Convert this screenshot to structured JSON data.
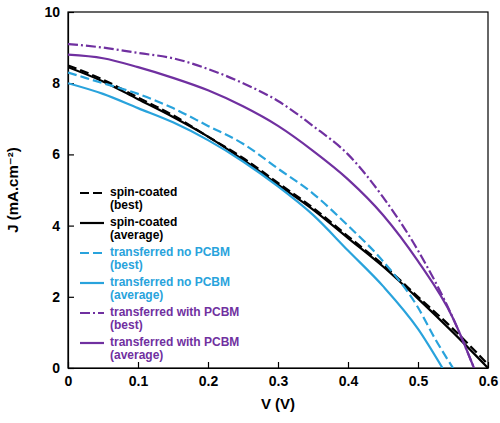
{
  "chart_data": {
    "type": "line",
    "x_label": "V (V)",
    "y_label": "J (mA.cm⁻²)",
    "xlim": [
      0,
      0.6
    ],
    "ylim": [
      0,
      10
    ],
    "xticks": [
      0,
      0.1,
      0.2,
      0.3,
      0.4,
      0.5,
      0.6
    ],
    "yticks": [
      0,
      2,
      4,
      6,
      8,
      10
    ],
    "grid": false,
    "legend": "lower left",
    "series": [
      {
        "name": "spin-coated (best)",
        "color": "#000000",
        "line_style": "dashed",
        "x": [
          0,
          0.05,
          0.1,
          0.15,
          0.2,
          0.25,
          0.3,
          0.35,
          0.4,
          0.45,
          0.5,
          0.55,
          0.605
        ],
        "values": [
          8.5,
          8.1,
          7.6,
          7.1,
          6.5,
          5.9,
          5.2,
          4.5,
          3.7,
          2.9,
          2.0,
          1.1,
          0
        ]
      },
      {
        "name": "spin-coated (average)",
        "color": "#000000",
        "line_style": "solid",
        "x": [
          0,
          0.05,
          0.1,
          0.15,
          0.2,
          0.25,
          0.3,
          0.35,
          0.4,
          0.45,
          0.5,
          0.55,
          0.6
        ],
        "values": [
          8.45,
          8.05,
          7.55,
          7.05,
          6.5,
          5.85,
          5.15,
          4.45,
          3.65,
          2.85,
          1.95,
          1.0,
          0
        ]
      },
      {
        "name": "transferred no PCBM (best)",
        "color": "#29a3dc",
        "line_style": "dashed",
        "x": [
          0,
          0.05,
          0.1,
          0.15,
          0.2,
          0.25,
          0.3,
          0.35,
          0.4,
          0.45,
          0.5,
          0.525,
          0.55
        ],
        "values": [
          8.3,
          8.0,
          7.7,
          7.3,
          6.8,
          6.3,
          5.6,
          4.9,
          4.0,
          3.0,
          1.7,
          0.8,
          0
        ]
      },
      {
        "name": "transferred no PCBM (average)",
        "color": "#29a3dc",
        "line_style": "solid",
        "x": [
          0,
          0.05,
          0.1,
          0.15,
          0.2,
          0.25,
          0.3,
          0.35,
          0.4,
          0.45,
          0.5,
          0.535
        ],
        "values": [
          8.0,
          7.7,
          7.3,
          6.9,
          6.4,
          5.8,
          5.1,
          4.3,
          3.3,
          2.3,
          1.1,
          0
        ]
      },
      {
        "name": "transferred with PCBM (best)",
        "color": "#7030a0",
        "line_style": "dashdot",
        "x": [
          0,
          0.05,
          0.1,
          0.15,
          0.2,
          0.25,
          0.3,
          0.35,
          0.4,
          0.45,
          0.5,
          0.55,
          0.58
        ],
        "values": [
          9.1,
          9.0,
          8.85,
          8.7,
          8.4,
          8.0,
          7.5,
          6.8,
          6.0,
          4.8,
          3.3,
          1.4,
          0
        ]
      },
      {
        "name": "transferred with PCBM (average)",
        "color": "#7030a0",
        "line_style": "solid",
        "x": [
          0,
          0.05,
          0.1,
          0.15,
          0.2,
          0.25,
          0.3,
          0.35,
          0.4,
          0.45,
          0.5,
          0.55,
          0.58
        ],
        "values": [
          8.8,
          8.7,
          8.45,
          8.15,
          7.8,
          7.35,
          6.8,
          6.1,
          5.3,
          4.3,
          3.0,
          1.4,
          0
        ]
      }
    ]
  }
}
